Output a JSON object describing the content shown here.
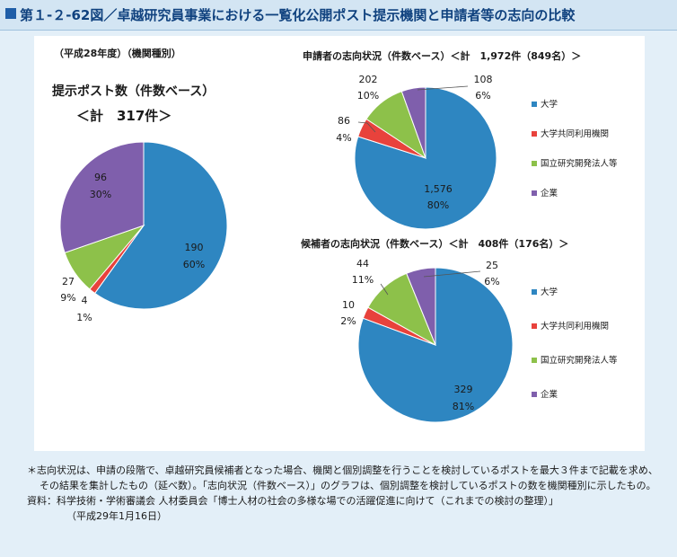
{
  "header": {
    "title": "第１-２-62図／卓越研究員事業における一覧化公開ポスト提示機関と申請者等の志向の比較"
  },
  "panel": {
    "subtitle": "（平成28年度）（機関種別）"
  },
  "chart_data": [
    {
      "type": "pie",
      "title": "提示ポスト数（件数ベース）",
      "total_label": "＜計　317件＞",
      "slices": [
        {
          "name": "大学",
          "value": 190,
          "percent": 60,
          "count_label": "190",
          "pct_label": "60%"
        },
        {
          "name": "大学共同利用機関",
          "value": 4,
          "percent": 1,
          "count_label": "4",
          "pct_label": "1%"
        },
        {
          "name": "国立研究開発法人等",
          "value": 27,
          "percent": 9,
          "count_label": "27",
          "pct_label": "9%"
        },
        {
          "name": "企業",
          "value": 96,
          "percent": 30,
          "count_label": "96",
          "pct_label": "30%"
        }
      ]
    },
    {
      "type": "pie",
      "title": "申請者の志向状況（件数ベース）＜計　1,972件（849名）＞",
      "slices": [
        {
          "name": "大学",
          "value": 1576,
          "percent": 80,
          "count_label": "1,576",
          "pct_label": "80%"
        },
        {
          "name": "大学共同利用機関",
          "value": 86,
          "percent": 4,
          "count_label": "86",
          "pct_label": "4%"
        },
        {
          "name": "国立研究開発法人等",
          "value": 202,
          "percent": 10,
          "count_label": "202",
          "pct_label": "10%"
        },
        {
          "name": "企業",
          "value": 108,
          "percent": 6,
          "count_label": "108",
          "pct_label": "6%"
        }
      ],
      "legend": [
        "大学",
        "大学共同利用機関",
        "国立研究開発法人等",
        "企業"
      ]
    },
    {
      "type": "pie",
      "title": "候補者の志向状況（件数ベース）＜計　408件（176名）＞",
      "slices": [
        {
          "name": "大学",
          "value": 329,
          "percent": 81,
          "count_label": "329",
          "pct_label": "81%"
        },
        {
          "name": "大学共同利用機関",
          "value": 10,
          "percent": 2,
          "count_label": "10",
          "pct_label": "2%"
        },
        {
          "name": "国立研究開発法人等",
          "value": 44,
          "percent": 11,
          "count_label": "44",
          "pct_label": "11%"
        },
        {
          "name": "企業",
          "value": 25,
          "percent": 6,
          "count_label": "25",
          "pct_label": "6%"
        }
      ],
      "legend": [
        "大学",
        "大学共同利用機関",
        "国立研究開発法人等",
        "企業"
      ]
    }
  ],
  "colors": {
    "大学": "#2e86c1",
    "大学共同利用機関": "#e8423c",
    "国立研究開発法人等": "#8dc14a",
    "企業": "#7f5fac"
  },
  "notes": {
    "note1": "＊志向状況は、申請の段階で、卓越研究員候補者となった場合、機関と個別調整を行うことを検討しているポストを最大３件まで記載を求め、その結果を集計したもの（延べ数）。「志向状況（件数ベース）」のグラフは、個別調整を検討しているポストの数を機関種別に示したもの。",
    "source": "資料：科学技術・学術審議会 人材委員会「博士人材の社会の多様な場での活躍促進に向けて（これまでの検討の整理）」",
    "source_date": "（平成29年1月16日）"
  }
}
